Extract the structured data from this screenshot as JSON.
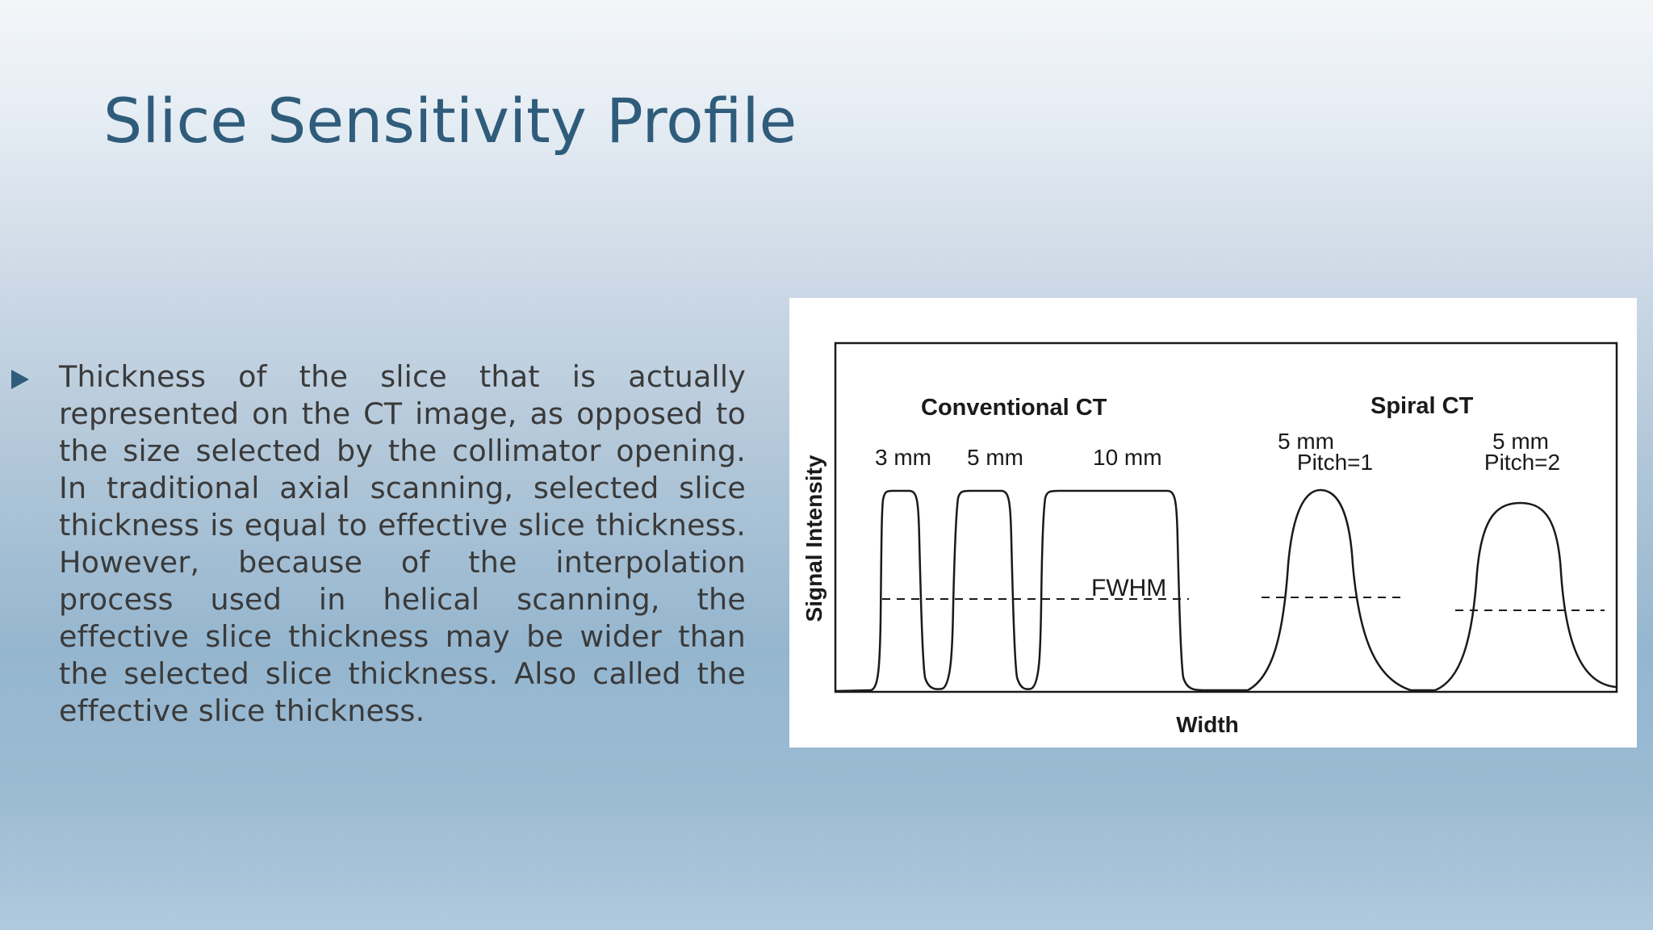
{
  "slide": {
    "title": "Slice Sensitivity Profile",
    "bullets": [
      "Thickness of the slice that is actually represented on the CT image, as opposed to the size selected by the collimator opening. In traditional axial scanning, selected slice thickness is equal to effective slice thickness. However, because of the interpolation process used in helical scanning, the effective slice thickness may be wider than the selected slice thickness. Also called the effective slice thickness."
    ]
  },
  "figure": {
    "y_axis_label": "Signal Intensity",
    "x_axis_label": "Width",
    "group_labels": {
      "conventional": "Conventional CT",
      "spiral": "Spiral CT"
    },
    "profile_labels": {
      "p3mm": "3 mm",
      "p5mm": "5 mm",
      "p10mm": "10 mm",
      "spiral1_line1": "5 mm",
      "spiral1_line2": "Pitch=1",
      "spiral2_line1": "5 mm",
      "spiral2_line2": "Pitch=2"
    },
    "fwhm_label": "FWHM"
  }
}
